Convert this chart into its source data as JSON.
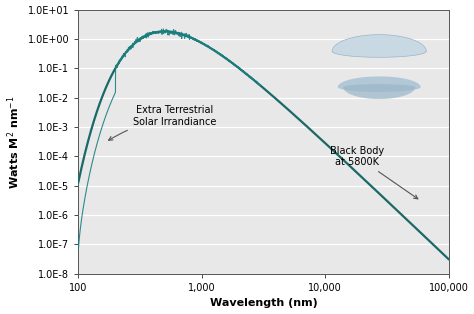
{
  "xlabel": "Wavelength (nm)",
  "ylabel": "Watts M² nm⁻¹",
  "xmin": 100,
  "xmax": 100000,
  "ymin": 1e-08,
  "ymax": 10.0,
  "background_color": "#e8e8e8",
  "plot_bg": "#e8e8e8",
  "bb_color": "#1a6868",
  "solar_color": "#1a8080",
  "annotation1_text": "Extra Terrestrial\nSolar Irrandiance",
  "annotation2_text": "Black Body\nat 5800K",
  "T_bb": 5800,
  "logo_color_outer": "#9ab5c8",
  "logo_color_inner": "#c5d8e4",
  "logo_color_mid": "#adc5d5",
  "y_ticks": [
    1e-08,
    1e-07,
    1e-06,
    1e-05,
    0.0001,
    0.001,
    0.01,
    0.1,
    1.0,
    10.0
  ],
  "y_labels": [
    "1.0E-8",
    "1.0E-7",
    "1.0E-6",
    "1.0E-5",
    "1.0E-4",
    "1.0E-3",
    "1.0E-2",
    "1.0E-1",
    "1.0E+00",
    "1.0E+01"
  ],
  "x_ticks": [
    100,
    1000,
    10000,
    100000
  ],
  "x_labels": [
    "100",
    "1,000",
    "10,000",
    "100,000"
  ]
}
